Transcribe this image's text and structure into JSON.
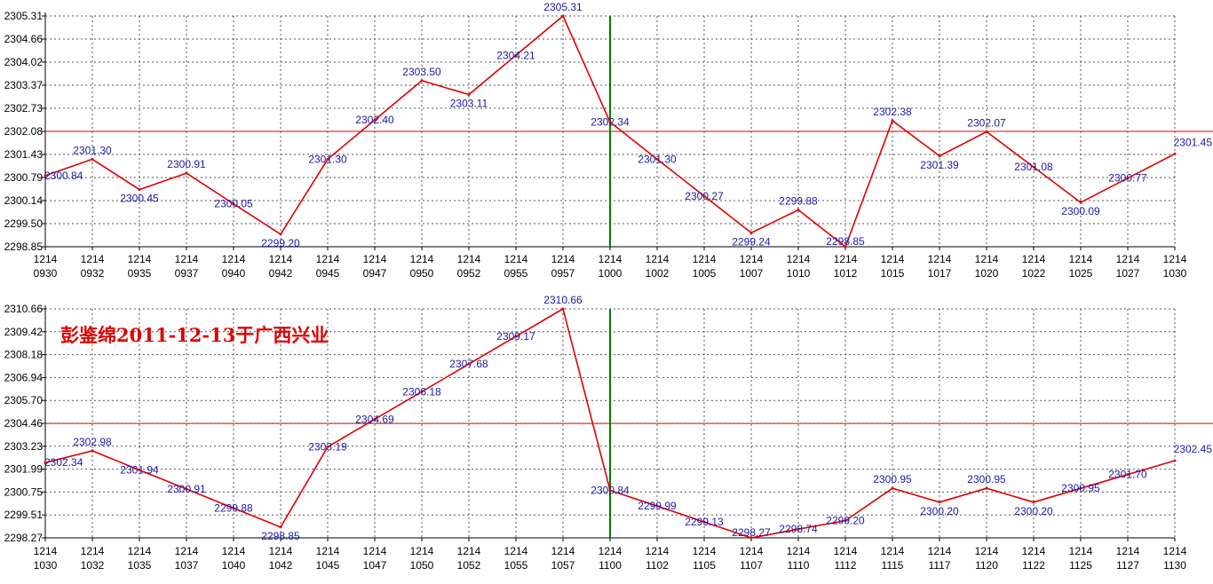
{
  "colors": {
    "line": "#e00000",
    "reference_line": "#e00000",
    "marker_line": "#008000",
    "grid": "#555555",
    "label": "#1a1aa6",
    "axis_text": "#000000"
  },
  "annotation": "彭鉴绵2011-12-13于广西兴业",
  "chart_data": [
    {
      "type": "line",
      "title": "",
      "ylim": [
        2298.85,
        2305.31
      ],
      "y_ticks": [
        "2305.31",
        "2304.66",
        "2304.02",
        "2303.37",
        "2302.73",
        "2302.08",
        "2301.43",
        "2300.79",
        "2300.14",
        "2299.50",
        "2298.85"
      ],
      "x_ticks": [
        [
          "1214",
          "0930"
        ],
        [
          "1214",
          "0932"
        ],
        [
          "1214",
          "0935"
        ],
        [
          "1214",
          "0937"
        ],
        [
          "1214",
          "0940"
        ],
        [
          "1214",
          "0942"
        ],
        [
          "1214",
          "0945"
        ],
        [
          "1214",
          "0947"
        ],
        [
          "1214",
          "0950"
        ],
        [
          "1214",
          "0952"
        ],
        [
          "1214",
          "0955"
        ],
        [
          "1214",
          "0957"
        ],
        [
          "1214",
          "1000"
        ],
        [
          "1214",
          "1002"
        ],
        [
          "1214",
          "1005"
        ],
        [
          "1214",
          "1007"
        ],
        [
          "1214",
          "1010"
        ],
        [
          "1214",
          "1012"
        ],
        [
          "1214",
          "1015"
        ],
        [
          "1214",
          "1017"
        ],
        [
          "1214",
          "1020"
        ],
        [
          "1214",
          "1022"
        ],
        [
          "1214",
          "1025"
        ],
        [
          "1214",
          "1027"
        ],
        [
          "1214",
          "1030"
        ]
      ],
      "reference_value": 2302.08,
      "marker_index": 12,
      "points": [
        {
          "i": 0,
          "v": 2300.84,
          "label": "2300.84"
        },
        {
          "i": 1,
          "v": 2301.3,
          "label": "2301.30"
        },
        {
          "i": 2,
          "v": 2300.45,
          "label": "2300.45"
        },
        {
          "i": 3,
          "v": 2300.91,
          "label": "2300.91"
        },
        {
          "i": 4,
          "v": 2300.05,
          "label": "2300.05"
        },
        {
          "i": 5,
          "v": 2299.2,
          "label": "2299.20"
        },
        {
          "i": 6,
          "v": 2301.3,
          "label": "2301.30"
        },
        {
          "i": 7,
          "v": 2302.4,
          "label": "2302.40"
        },
        {
          "i": 8,
          "v": 2303.5,
          "label": "2303.50"
        },
        {
          "i": 9,
          "v": 2303.11,
          "label": "2303.11"
        },
        {
          "i": 10,
          "v": 2304.21,
          "label": "2304.21"
        },
        {
          "i": 11,
          "v": 2305.31,
          "label": "2305.31"
        },
        {
          "i": 12,
          "v": 2302.34,
          "label": "2302.34"
        },
        {
          "i": 13,
          "v": 2301.3,
          "label": "2301.30"
        },
        {
          "i": 14,
          "v": 2300.27,
          "label": "2300.27"
        },
        {
          "i": 15,
          "v": 2299.24,
          "label": "2299.24"
        },
        {
          "i": 16,
          "v": 2299.88,
          "label": "2299.88"
        },
        {
          "i": 17,
          "v": 2298.85,
          "label": "2298.85"
        },
        {
          "i": 18,
          "v": 2302.38,
          "label": "2302.38"
        },
        {
          "i": 19,
          "v": 2301.39,
          "label": "2301.39"
        },
        {
          "i": 20,
          "v": 2302.07,
          "label": "2302.07"
        },
        {
          "i": 21,
          "v": 2301.08,
          "label": "2301.08"
        },
        {
          "i": 22,
          "v": 2300.09,
          "label": "2300.09"
        },
        {
          "i": 23,
          "v": 2300.77,
          "label": "2300.77"
        },
        {
          "i": 24,
          "v": 2301.45,
          "label": "2301.45"
        }
      ]
    },
    {
      "type": "line",
      "title": "",
      "ylim": [
        2298.27,
        2310.66
      ],
      "y_ticks": [
        "2310.66",
        "2309.42",
        "2308.18",
        "2306.94",
        "2305.70",
        "2304.46",
        "2303.23",
        "2301.99",
        "2300.75",
        "2299.51",
        "2298.27"
      ],
      "x_ticks": [
        [
          "1214",
          "1030"
        ],
        [
          "1214",
          "1032"
        ],
        [
          "1214",
          "1035"
        ],
        [
          "1214",
          "1037"
        ],
        [
          "1214",
          "1040"
        ],
        [
          "1214",
          "1042"
        ],
        [
          "1214",
          "1045"
        ],
        [
          "1214",
          "1047"
        ],
        [
          "1214",
          "1050"
        ],
        [
          "1214",
          "1052"
        ],
        [
          "1214",
          "1055"
        ],
        [
          "1214",
          "1057"
        ],
        [
          "1214",
          "1100"
        ],
        [
          "1214",
          "1102"
        ],
        [
          "1214",
          "1105"
        ],
        [
          "1214",
          "1107"
        ],
        [
          "1214",
          "1110"
        ],
        [
          "1214",
          "1112"
        ],
        [
          "1214",
          "1115"
        ],
        [
          "1214",
          "1117"
        ],
        [
          "1214",
          "1120"
        ],
        [
          "1214",
          "1122"
        ],
        [
          "1214",
          "1125"
        ],
        [
          "1214",
          "1127"
        ],
        [
          "1214",
          "1130"
        ]
      ],
      "reference_value": 2304.46,
      "marker_index": 12,
      "points": [
        {
          "i": 0,
          "v": 2302.34,
          "label": "2302.34"
        },
        {
          "i": 1,
          "v": 2302.98,
          "label": "2302.98"
        },
        {
          "i": 2,
          "v": 2301.94,
          "label": "2301.94"
        },
        {
          "i": 3,
          "v": 2300.91,
          "label": "2300.91"
        },
        {
          "i": 4,
          "v": 2299.88,
          "label": "2299.88"
        },
        {
          "i": 5,
          "v": 2298.85,
          "label": "2298.85"
        },
        {
          "i": 6,
          "v": 2303.19,
          "label": "2303.19"
        },
        {
          "i": 7,
          "v": 2304.69,
          "label": "2304.69"
        },
        {
          "i": 8,
          "v": 2306.18,
          "label": "2306.18"
        },
        {
          "i": 9,
          "v": 2307.68,
          "label": "2307.68"
        },
        {
          "i": 10,
          "v": 2309.17,
          "label": "2309.17"
        },
        {
          "i": 11,
          "v": 2310.66,
          "label": "2310.66"
        },
        {
          "i": 12,
          "v": 2300.84,
          "label": "2300.84"
        },
        {
          "i": 13,
          "v": 2299.99,
          "label": "2299.99"
        },
        {
          "i": 14,
          "v": 2299.13,
          "label": "2299.13"
        },
        {
          "i": 15,
          "v": 2298.27,
          "label": "2298.27"
        },
        {
          "i": 16,
          "v": 2298.74,
          "label": "2298.74"
        },
        {
          "i": 17,
          "v": 2299.2,
          "label": "2299.20"
        },
        {
          "i": 18,
          "v": 2300.95,
          "label": "2300.95"
        },
        {
          "i": 19,
          "v": 2300.2,
          "label": "2300.20"
        },
        {
          "i": 20,
          "v": 2300.95,
          "label": "2300.95"
        },
        {
          "i": 21,
          "v": 2300.2,
          "label": "2300.20"
        },
        {
          "i": 22,
          "v": 2300.95,
          "label": "2300.95"
        },
        {
          "i": 23,
          "v": 2301.7,
          "label": "2301.70"
        },
        {
          "i": 24,
          "v": 2302.45,
          "label": "2302.45"
        }
      ]
    }
  ]
}
